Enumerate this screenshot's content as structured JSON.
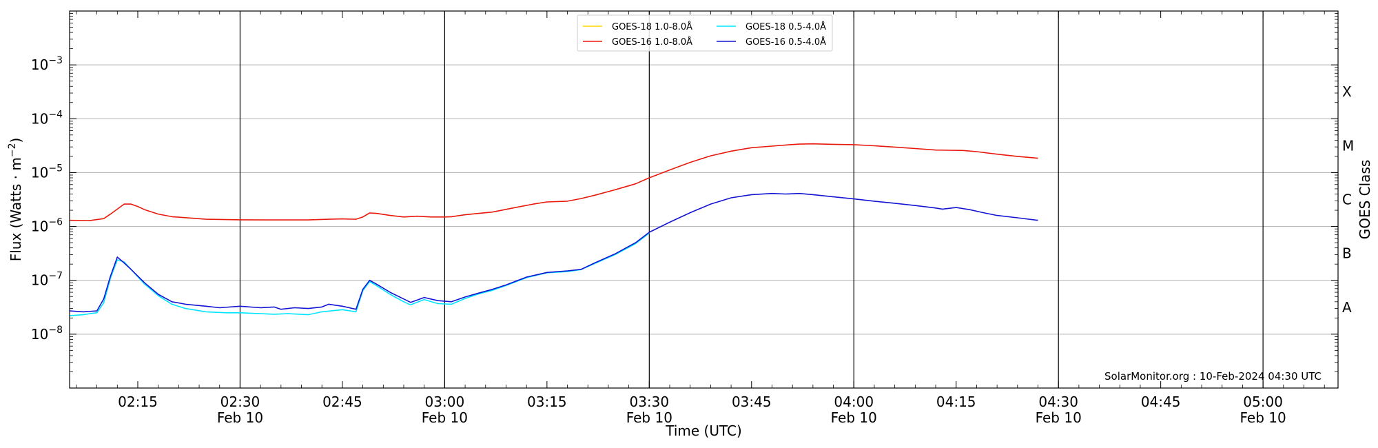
{
  "chart_data": {
    "type": "line",
    "xlabel": "Time (UTC)",
    "ylabel": "Flux (Watts · m⁻²)",
    "ylabel_right": "GOES Class",
    "y_scale": "log",
    "ylim": [
      1e-09,
      0.01
    ],
    "xlim": [
      "2024-02-10 02:05",
      "2024-02-10 05:11"
    ],
    "grid": "horizontal",
    "legend_position": "top-center",
    "x_ticks": [
      {
        "time": "02:15",
        "label": "02:15",
        "date": ""
      },
      {
        "time": "02:30",
        "label": "02:30",
        "date": "Feb 10"
      },
      {
        "time": "02:45",
        "label": "02:45",
        "date": ""
      },
      {
        "time": "03:00",
        "label": "03:00",
        "date": "Feb 10"
      },
      {
        "time": "03:15",
        "label": "03:15",
        "date": ""
      },
      {
        "time": "03:30",
        "label": "03:30",
        "date": "Feb 10"
      },
      {
        "time": "03:45",
        "label": "03:45",
        "date": ""
      },
      {
        "time": "04:00",
        "label": "04:00",
        "date": "Feb 10"
      },
      {
        "time": "04:15",
        "label": "04:15",
        "date": ""
      },
      {
        "time": "04:30",
        "label": "04:30",
        "date": "Feb 10"
      },
      {
        "time": "04:45",
        "label": "04:45",
        "date": ""
      },
      {
        "time": "05:00",
        "label": "05:00",
        "date": "Feb 10"
      }
    ],
    "vertical_lines": [
      "02:30",
      "03:00",
      "03:30",
      "04:00",
      "04:30",
      "05:00"
    ],
    "y_ticks": [
      {
        "exp": -8,
        "label": "10",
        "sup": "−8"
      },
      {
        "exp": -7,
        "label": "10",
        "sup": "−7"
      },
      {
        "exp": -6,
        "label": "10",
        "sup": "−6"
      },
      {
        "exp": -5,
        "label": "10",
        "sup": "−5"
      },
      {
        "exp": -4,
        "label": "10",
        "sup": "−4"
      },
      {
        "exp": -3,
        "label": "10",
        "sup": "−3"
      }
    ],
    "goes_classes": [
      {
        "label": "A",
        "exp": -7.5
      },
      {
        "label": "B",
        "exp": -6.5
      },
      {
        "label": "C",
        "exp": -5.5
      },
      {
        "label": "M",
        "exp": -4.5
      },
      {
        "label": "X",
        "exp": -3.5
      }
    ],
    "series": [
      {
        "name": "GOES-18 1.0-8.0Å",
        "color": "#ffd700",
        "legend_slot": 0,
        "points": []
      },
      {
        "name": "GOES-16 1.0-8.0Å",
        "color": "#e8180c",
        "legend_slot": 1,
        "points": [
          [
            "02:05",
            1.3e-06
          ],
          [
            "02:08",
            1.29e-06
          ],
          [
            "02:10",
            1.4e-06
          ],
          [
            "02:11",
            1.7e-06
          ],
          [
            "02:12",
            2.1e-06
          ],
          [
            "02:13",
            2.6e-06
          ],
          [
            "02:14",
            2.6e-06
          ],
          [
            "02:15",
            2.35e-06
          ],
          [
            "02:16",
            2.05e-06
          ],
          [
            "02:18",
            1.7e-06
          ],
          [
            "02:20",
            1.52e-06
          ],
          [
            "02:25",
            1.36e-06
          ],
          [
            "02:30",
            1.33e-06
          ],
          [
            "02:35",
            1.32e-06
          ],
          [
            "02:40",
            1.32e-06
          ],
          [
            "02:43",
            1.36e-06
          ],
          [
            "02:45",
            1.38e-06
          ],
          [
            "02:47",
            1.36e-06
          ],
          [
            "02:48",
            1.5e-06
          ],
          [
            "02:49",
            1.78e-06
          ],
          [
            "02:50",
            1.75e-06
          ],
          [
            "02:52",
            1.6e-06
          ],
          [
            "02:54",
            1.5e-06
          ],
          [
            "02:56",
            1.55e-06
          ],
          [
            "02:58",
            1.5e-06
          ],
          [
            "03:00",
            1.5e-06
          ],
          [
            "03:01",
            1.52e-06
          ],
          [
            "03:03",
            1.65e-06
          ],
          [
            "03:05",
            1.75e-06
          ],
          [
            "03:07",
            1.85e-06
          ],
          [
            "03:10",
            2.2e-06
          ],
          [
            "03:13",
            2.6e-06
          ],
          [
            "03:15",
            2.85e-06
          ],
          [
            "03:18",
            2.95e-06
          ],
          [
            "03:20",
            3.3e-06
          ],
          [
            "03:22",
            3.8e-06
          ],
          [
            "03:25",
            4.8e-06
          ],
          [
            "03:28",
            6.2e-06
          ],
          [
            "03:30",
            8e-06
          ],
          [
            "03:33",
            1.12e-05
          ],
          [
            "03:36",
            1.55e-05
          ],
          [
            "03:39",
            2.05e-05
          ],
          [
            "03:42",
            2.5e-05
          ],
          [
            "03:45",
            2.9e-05
          ],
          [
            "03:48",
            3.1e-05
          ],
          [
            "03:50",
            3.25e-05
          ],
          [
            "03:52",
            3.38e-05
          ],
          [
            "03:54",
            3.42e-05
          ],
          [
            "03:57",
            3.35e-05
          ],
          [
            "04:00",
            3.3e-05
          ],
          [
            "04:03",
            3.15e-05
          ],
          [
            "04:06",
            2.98e-05
          ],
          [
            "04:09",
            2.8e-05
          ],
          [
            "04:12",
            2.62e-05
          ],
          [
            "04:14",
            2.6e-05
          ],
          [
            "04:16",
            2.58e-05
          ],
          [
            "04:18",
            2.45e-05
          ],
          [
            "04:21",
            2.2e-05
          ],
          [
            "04:24",
            2e-05
          ],
          [
            "04:27",
            1.85e-05
          ]
        ]
      },
      {
        "name": "GOES-18 0.5-4.0Å",
        "color": "#00e5ff",
        "legend_slot": 2,
        "points": [
          [
            "02:05",
            2.2e-08
          ],
          [
            "02:07",
            2.3e-08
          ],
          [
            "02:08",
            2.4e-08
          ],
          [
            "02:09",
            2.5e-08
          ],
          [
            "02:10",
            3.8e-08
          ],
          [
            "02:11",
            1.1e-07
          ],
          [
            "02:12",
            2.4e-07
          ],
          [
            "02:13",
            2.2e-07
          ],
          [
            "02:14",
            1.6e-07
          ],
          [
            "02:16",
            8.5e-08
          ],
          [
            "02:18",
            5.2e-08
          ],
          [
            "02:20",
            3.6e-08
          ],
          [
            "02:22",
            3e-08
          ],
          [
            "02:25",
            2.6e-08
          ],
          [
            "02:28",
            2.5e-08
          ],
          [
            "02:30",
            2.5e-08
          ],
          [
            "02:33",
            2.4e-08
          ],
          [
            "02:35",
            2.35e-08
          ],
          [
            "02:37",
            2.4e-08
          ],
          [
            "02:40",
            2.3e-08
          ],
          [
            "02:42",
            2.6e-08
          ],
          [
            "02:45",
            2.85e-08
          ],
          [
            "02:47",
            2.6e-08
          ],
          [
            "02:48",
            6.4e-08
          ],
          [
            "02:49",
            9.5e-08
          ],
          [
            "02:50",
            8e-08
          ],
          [
            "02:52",
            5.5e-08
          ],
          [
            "02:54",
            4e-08
          ],
          [
            "02:55",
            3.5e-08
          ],
          [
            "02:57",
            4.4e-08
          ],
          [
            "02:59",
            3.7e-08
          ],
          [
            "03:01",
            3.6e-08
          ],
          [
            "03:03",
            4.6e-08
          ],
          [
            "03:05",
            5.6e-08
          ],
          [
            "03:07",
            6.5e-08
          ],
          [
            "03:09",
            8e-08
          ],
          [
            "03:12",
            1.12e-07
          ],
          [
            "03:15",
            1.38e-07
          ],
          [
            "03:18",
            1.45e-07
          ],
          [
            "03:20",
            1.58e-07
          ],
          [
            "03:22",
            2.05e-07
          ],
          [
            "03:25",
            3e-07
          ],
          [
            "03:28",
            4.8e-07
          ],
          [
            "03:30",
            7.5e-07
          ]
        ]
      },
      {
        "name": "GOES-16 0.5-4.0Å",
        "color": "#1414d4",
        "legend_slot": 3,
        "points": [
          [
            "02:05",
            2.7e-08
          ],
          [
            "02:07",
            2.6e-08
          ],
          [
            "02:09",
            2.7e-08
          ],
          [
            "02:10",
            4.5e-08
          ],
          [
            "02:11",
            1.2e-07
          ],
          [
            "02:12",
            2.7e-07
          ],
          [
            "02:13",
            2.1e-07
          ],
          [
            "02:14",
            1.6e-07
          ],
          [
            "02:16",
            9e-08
          ],
          [
            "02:18",
            5.5e-08
          ],
          [
            "02:20",
            4e-08
          ],
          [
            "02:22",
            3.6e-08
          ],
          [
            "02:25",
            3.3e-08
          ],
          [
            "02:27",
            3.1e-08
          ],
          [
            "02:30",
            3.3e-08
          ],
          [
            "02:33",
            3.1e-08
          ],
          [
            "02:35",
            3.2e-08
          ],
          [
            "02:36",
            2.9e-08
          ],
          [
            "02:38",
            3.1e-08
          ],
          [
            "02:40",
            3e-08
          ],
          [
            "02:42",
            3.2e-08
          ],
          [
            "02:43",
            3.6e-08
          ],
          [
            "02:45",
            3.3e-08
          ],
          [
            "02:47",
            2.9e-08
          ],
          [
            "02:48",
            6.8e-08
          ],
          [
            "02:49",
            1e-07
          ],
          [
            "02:50",
            8.5e-08
          ],
          [
            "02:52",
            6e-08
          ],
          [
            "02:54",
            4.5e-08
          ],
          [
            "02:55",
            3.9e-08
          ],
          [
            "02:57",
            4.8e-08
          ],
          [
            "02:59",
            4.2e-08
          ],
          [
            "03:01",
            4e-08
          ],
          [
            "03:03",
            4.9e-08
          ],
          [
            "03:05",
            5.8e-08
          ],
          [
            "03:07",
            6.8e-08
          ],
          [
            "03:09",
            8.2e-08
          ],
          [
            "03:12",
            1.15e-07
          ],
          [
            "03:15",
            1.4e-07
          ],
          [
            "03:18",
            1.5e-07
          ],
          [
            "03:20",
            1.6e-07
          ],
          [
            "03:22",
            2.1e-07
          ],
          [
            "03:25",
            3.1e-07
          ],
          [
            "03:28",
            5e-07
          ],
          [
            "03:30",
            7.8e-07
          ],
          [
            "03:33",
            1.2e-06
          ],
          [
            "03:36",
            1.8e-06
          ],
          [
            "03:39",
            2.6e-06
          ],
          [
            "03:42",
            3.4e-06
          ],
          [
            "03:45",
            3.9e-06
          ],
          [
            "03:48",
            4.1e-06
          ],
          [
            "03:50",
            4e-06
          ],
          [
            "03:52",
            4.1e-06
          ],
          [
            "03:54",
            3.9e-06
          ],
          [
            "03:57",
            3.55e-06
          ],
          [
            "04:00",
            3.25e-06
          ],
          [
            "04:03",
            2.95e-06
          ],
          [
            "04:06",
            2.7e-06
          ],
          [
            "04:09",
            2.45e-06
          ],
          [
            "04:12",
            2.2e-06
          ],
          [
            "04:13",
            2.1e-06
          ],
          [
            "04:15",
            2.25e-06
          ],
          [
            "04:17",
            2.05e-06
          ],
          [
            "04:19",
            1.8e-06
          ],
          [
            "04:21",
            1.6e-06
          ],
          [
            "04:24",
            1.45e-06
          ],
          [
            "04:27",
            1.3e-06
          ]
        ]
      }
    ],
    "annotation": "SolarMonitor.org : 10-Feb-2024 04:30 UTC"
  }
}
